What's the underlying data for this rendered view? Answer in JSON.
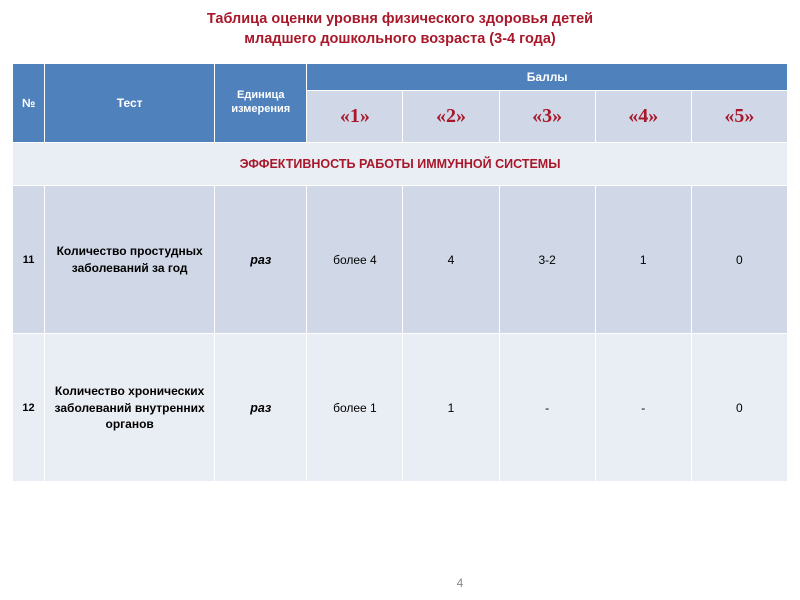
{
  "colors": {
    "title": "#a8172a",
    "header_bg": "#4f81bd",
    "header_fg": "#ffffff",
    "band_light": "#e9edf4",
    "band_dark": "#d0d8e8",
    "score_label": "#a8172a",
    "border": "#ffffff",
    "page_num": "#8a8a8a"
  },
  "title_line1": "Таблица оценки уровня физического здоровья детей",
  "title_line2": "младшего дошкольного возраста (3-4 года)",
  "headers": {
    "num": "№",
    "test": "Тест",
    "unit": "Единица измерения",
    "scores": "Баллы",
    "s1": "«1»",
    "s2": "«2»",
    "s3": "«3»",
    "s4": "«4»",
    "s5": "«5»"
  },
  "section": "ЭФФЕКТИВНОСТЬ РАБОТЫ ИММУННОЙ СИСТЕМЫ",
  "rows": [
    {
      "num": "11",
      "test": "Количество простудных заболеваний за год",
      "unit": "раз",
      "v1": "более 4",
      "v2": "4",
      "v3": "3-2",
      "v4": "1",
      "v5": "0"
    },
    {
      "num": "12",
      "test": "Количество хронических заболеваний внутренних органов",
      "unit": "раз",
      "v1": "более 1",
      "v2": "1",
      "v3": "-",
      "v4": "-",
      "v5": "0"
    }
  ],
  "page_number": "4"
}
